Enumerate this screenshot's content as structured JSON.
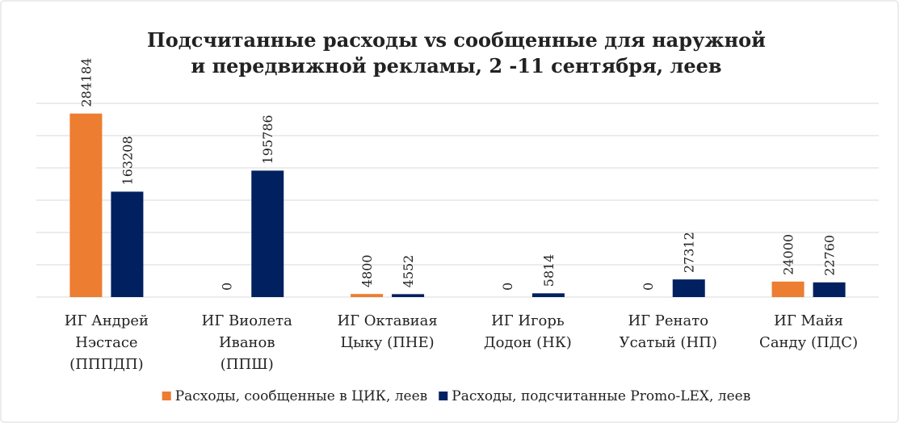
{
  "chart_data": {
    "type": "bar",
    "title": [
      "Подсчитанные расходы vs сообщенные для наружной",
      "и передвижной рекламы, 2 -11 сентября, леев"
    ],
    "categories": [
      [
        "ИГ Андрей",
        "Нэстасе",
        "(ПППДП)"
      ],
      [
        "ИГ Виолета",
        "Иванов",
        "(ППШ)"
      ],
      [
        "ИГ Октавиая",
        "Цыку (ПНЕ)"
      ],
      [
        "ИГ Игорь",
        "Додон (НК)"
      ],
      [
        "ИГ Ренато",
        "Усатый (НП)"
      ],
      [
        "ИГ Майя",
        "Санду (ПДС)"
      ]
    ],
    "series": [
      {
        "name": "Расходы, сообщенные в ЦИК, леев",
        "color": "#ed7d31",
        "values": [
          284184,
          0,
          4800,
          0,
          0,
          24000
        ]
      },
      {
        "name": "Расходы, подсчитанные Promo-LEX, леев",
        "color": "#002060",
        "values": [
          163208,
          195786,
          4552,
          5814,
          27312,
          22760
        ]
      }
    ],
    "ylim": [
      0,
      300000
    ],
    "yticks": [
      0,
      50000,
      100000,
      150000,
      200000,
      250000,
      300000
    ],
    "grid": true,
    "legend": "bottom"
  }
}
